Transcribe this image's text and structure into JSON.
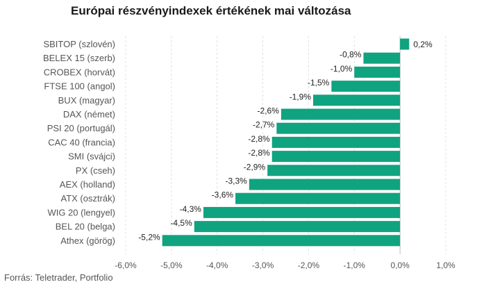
{
  "chart_data": {
    "type": "bar",
    "orientation": "horizontal",
    "title": "Európai részvényindexek értékének mai változása",
    "source": "Forrás: Teletrader, Portfolio",
    "categories": [
      "SBITOP (szlovén)",
      "BELEX 15 (szerb)",
      "CROBEX (horvát)",
      "FTSE 100 (angol)",
      "BUX (magyar)",
      "DAX (német)",
      "PSI 20 (portugál)",
      "CAC 40 (francia)",
      "SMI (svájci)",
      "PX (cseh)",
      "AEX (holland)",
      "ATX (osztrák)",
      "WIG 20 (lengyel)",
      "BEL 20 (belga)",
      "Athex (görög)"
    ],
    "values": [
      0.2,
      -0.8,
      -1.0,
      -1.5,
      -1.9,
      -2.6,
      -2.7,
      -2.8,
      -2.8,
      -2.9,
      -3.3,
      -3.6,
      -4.3,
      -4.5,
      -5.2
    ],
    "value_labels": [
      "0,2%",
      "-0,8%",
      "-1,0%",
      "-1,5%",
      "-1,9%",
      "-2,6%",
      "-2,7%",
      "-2,8%",
      "-2,8%",
      "-2,9%",
      "-3,3%",
      "-3,6%",
      "-4,3%",
      "-4,5%",
      "-5,2%"
    ],
    "xlim": [
      -6.0,
      1.0
    ],
    "xticks": [
      -6,
      -5,
      -4,
      -3,
      -2,
      -1,
      0,
      1
    ],
    "xtick_labels": [
      "-6,0%",
      "-5,0%",
      "-4,0%",
      "-3,0%",
      "-2,0%",
      "-1,0%",
      "0,0%",
      "1,0%"
    ],
    "bar_color": "#10a37f",
    "grid": true
  }
}
